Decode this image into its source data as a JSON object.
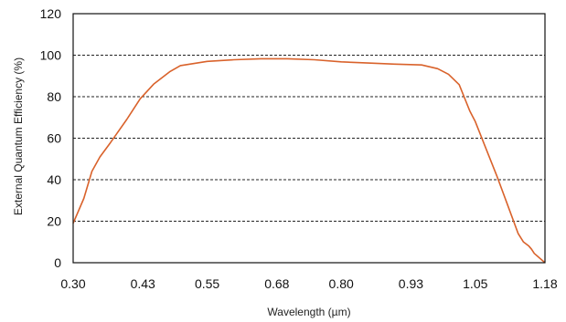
{
  "chart_data": {
    "type": "line",
    "title": "",
    "xlabel": "Wavelength (µm)",
    "ylabel": "External Quantum Efficiency (%)",
    "xlim": [
      0.3,
      1.18
    ],
    "ylim": [
      0,
      120
    ],
    "x_ticks": [
      0.3,
      0.43,
      0.55,
      0.68,
      0.8,
      0.93,
      1.05,
      1.18
    ],
    "x_tick_labels": [
      "0.30",
      "0.43",
      "0.55",
      "0.68",
      "0.80",
      "0.93",
      "1.05",
      "1.18"
    ],
    "y_ticks": [
      0,
      20,
      40,
      60,
      80,
      100,
      120
    ],
    "y_tick_labels": [
      "0",
      "20",
      "40",
      "60",
      "80",
      "100",
      "120"
    ],
    "grid": "horizontal dashed at 20, 40, 60, 80, 100",
    "legend": "none",
    "series": [
      {
        "color": "#d9622b",
        "x": [
          0.3,
          0.32,
          0.335,
          0.35,
          0.37,
          0.4,
          0.425,
          0.45,
          0.48,
          0.5,
          0.55,
          0.6,
          0.65,
          0.7,
          0.75,
          0.8,
          0.85,
          0.9,
          0.95,
          0.98,
          1.0,
          1.02,
          1.04,
          1.05,
          1.07,
          1.09,
          1.11,
          1.13,
          1.14,
          1.15,
          1.155,
          1.16,
          1.18
        ],
        "y": [
          19,
          31,
          44,
          51,
          58,
          69,
          79,
          86,
          92,
          95,
          97,
          97.8,
          98.3,
          98.3,
          97.8,
          96.8,
          96.2,
          95.7,
          95.3,
          93.5,
          90.8,
          85.8,
          73,
          68,
          55,
          42,
          28,
          14,
          10,
          8,
          6.5,
          4.5,
          0
        ]
      }
    ]
  }
}
